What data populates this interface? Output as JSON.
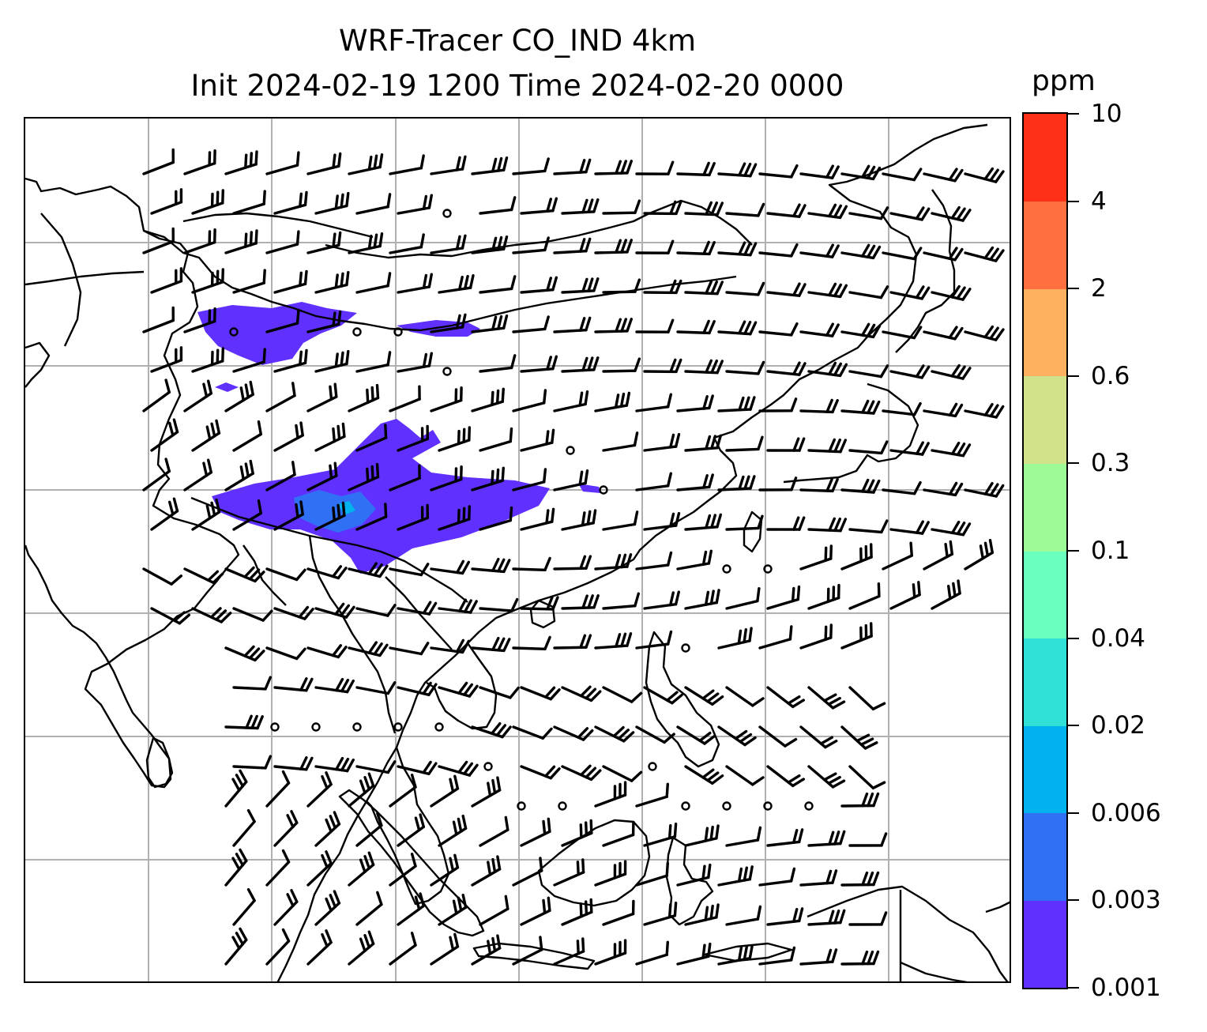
{
  "title": {
    "line1": "WRF-Tracer CO_IND 4km",
    "line2": "Init 2024-02-19 1200 Time 2024-02-20 0000"
  },
  "colorbar": {
    "unit": "ppm",
    "levels": [
      "0.001",
      "0.003",
      "0.006",
      "0.02",
      "0.04",
      "0.1",
      "0.3",
      "0.6",
      "2",
      "4",
      "10"
    ],
    "colors": [
      "#6030ff",
      "#3070f4",
      "#00b2ee",
      "#2ee0d6",
      "#6affbe",
      "#9cfb96",
      "#cfe28a",
      "#ffb060",
      "#ff7040",
      "#ff3018"
    ]
  },
  "map": {
    "graticule": "on",
    "coastlines": "black",
    "tracer_color_low": "#6030ff",
    "tracer_color_mid": "#3070f4",
    "tracer_color_peak": "#00b2ee",
    "wind_barbs": "black"
  }
}
